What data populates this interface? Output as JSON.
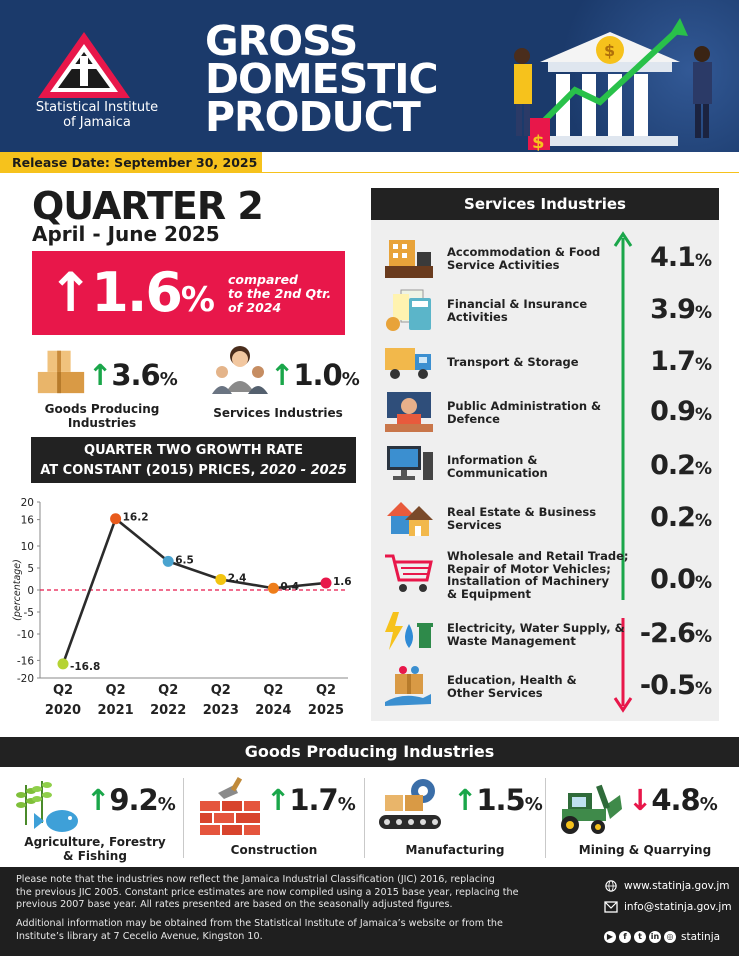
{
  "header": {
    "org_name_line1": "Statistical Institute",
    "org_name_line2": "of Jamaica",
    "title_line1": "GROSS",
    "title_line2": "DOMESTIC",
    "title_line3": "PRODUCT",
    "release_date": "Release Date: September 30, 2025"
  },
  "quarter": {
    "title": "QUARTER 2",
    "period": "April - June 2025",
    "headline_value": "1.6",
    "headline_unit": "%",
    "comparison_line1": "compared",
    "comparison_line2": "to the 2nd Qtr.",
    "comparison_line3": "of 2024"
  },
  "summary": {
    "goods": {
      "value": "3.6",
      "unit": "%",
      "label_line1": "Goods Producing",
      "label_line2": "Industries",
      "direction": "up"
    },
    "services": {
      "value": "1.0",
      "unit": "%",
      "label": "Services Industries",
      "direction": "up"
    }
  },
  "chart_title_line1": "QUARTER TWO GROWTH RATE",
  "chart_title_line2a": "AT CONSTANT (2015) PRICES,",
  "chart_title_line2b": "2020 - 2025",
  "chart_data": {
    "type": "line",
    "title": "QUARTER TWO GROWTH RATE AT CONSTANT (2015) PRICES, 2020 - 2025",
    "ylabel": "(percentage)",
    "ylim": [
      -20,
      20
    ],
    "yticks": [
      20,
      16,
      10,
      5,
      0,
      -5,
      -10,
      -16,
      -20
    ],
    "x_quarter": [
      "Q2",
      "Q2",
      "Q2",
      "Q2",
      "Q2",
      "Q2"
    ],
    "x_year": [
      "2020",
      "2021",
      "2022",
      "2023",
      "2024",
      "2025"
    ],
    "values": [
      -16.8,
      16.2,
      6.5,
      2.4,
      0.4,
      1.6
    ],
    "point_colors": [
      "#b5d334",
      "#e85a1c",
      "#4aa3cf",
      "#f2c40f",
      "#ee7d1a",
      "#e8174a"
    ],
    "zero_line": true
  },
  "services": {
    "title": "Services Industries",
    "items": [
      {
        "name_line1": "Accommodation & Food",
        "name_line2": "Service Activities",
        "name_line3": "",
        "name_line4": "",
        "value": "4.1",
        "unit": "%",
        "direction": "up",
        "icon": "hotel-icon"
      },
      {
        "name_line1": "Financial & Insurance",
        "name_line2": "Activities",
        "name_line3": "",
        "name_line4": "",
        "value": "3.9",
        "unit": "%",
        "direction": "up",
        "icon": "calculator-icon"
      },
      {
        "name_line1": "Transport & Storage",
        "name_line2": "",
        "name_line3": "",
        "name_line4": "",
        "value": "1.7",
        "unit": "%",
        "direction": "up",
        "icon": "truck-icon"
      },
      {
        "name_line1": "Public Administration &",
        "name_line2": "Defence",
        "name_line3": "",
        "name_line4": "",
        "value": "0.9",
        "unit": "%",
        "direction": "up",
        "icon": "official-icon"
      },
      {
        "name_line1": "Information &",
        "name_line2": "Communication",
        "name_line3": "",
        "name_line4": "",
        "value": "0.2",
        "unit": "%",
        "direction": "up",
        "icon": "computer-icon"
      },
      {
        "name_line1": "Real Estate & Business",
        "name_line2": "Services",
        "name_line3": "",
        "name_line4": "",
        "value": "0.2",
        "unit": "%",
        "direction": "up",
        "icon": "houses-icon"
      },
      {
        "name_line1": "Wholesale and Retail Trade;",
        "name_line2": "Repair of Motor Vehicles;",
        "name_line3": "Installation of Machinery",
        "name_line4": "& Equipment",
        "value": "0.0",
        "unit": "%",
        "direction": "up",
        "icon": "cart-icon"
      },
      {
        "name_line1": "Electricity, Water Supply, &",
        "name_line2": "Waste Management",
        "name_line3": "",
        "name_line4": "",
        "value": "-2.6",
        "unit": "%",
        "direction": "down",
        "icon": "utilities-icon"
      },
      {
        "name_line1": "Education, Health &",
        "name_line2": "Other Services",
        "name_line3": "",
        "name_line4": "",
        "value": "-0.5",
        "unit": "%",
        "direction": "down",
        "icon": "care-box-icon"
      }
    ]
  },
  "goods": {
    "title": "Goods Producing Industries",
    "items": [
      {
        "value": "9.2",
        "unit": "%",
        "direction": "up",
        "label_line1": "Agriculture, Forestry",
        "label_line2": "& Fishing",
        "icon": "agriculture-icon"
      },
      {
        "value": "1.7",
        "unit": "%",
        "direction": "up",
        "label_line1": "Construction",
        "label_line2": "",
        "icon": "bricks-icon"
      },
      {
        "value": "1.5",
        "unit": "%",
        "direction": "up",
        "label_line1": "Manufacturing",
        "label_line2": "",
        "icon": "conveyor-icon"
      },
      {
        "value": "4.8",
        "unit": "%",
        "direction": "down",
        "label_line1": "Mining & Quarrying",
        "label_line2": "",
        "icon": "loader-icon"
      }
    ]
  },
  "footer": {
    "note1_line1": "Please note that the industries now reflect the Jamaica Industrial Classification (JIC) 2016, replacing",
    "note1_line2": "the previous JIC 2005. Constant price estimates are now compiled using a 2015 base year, replacing the",
    "note1_line3": "previous 2007 base year. All rates presented are based on the seasonally adjusted figures.",
    "note2_line1": "Additional information may be obtained from the Statistical Institute of Jamaica’s website or from the",
    "note2_line2": "Institute’s library at 7 Cecelio Avenue, Kingston 10.",
    "website": "www.statinja.gov.jm",
    "email": "info@statinja.gov.jm",
    "social_handle": "statinja"
  },
  "colors": {
    "navy": "#1b3a6b",
    "accent_red": "#e8174a",
    "up_green": "#1aa64a",
    "release_yellow": "#f6c21c",
    "dark": "#222222"
  }
}
